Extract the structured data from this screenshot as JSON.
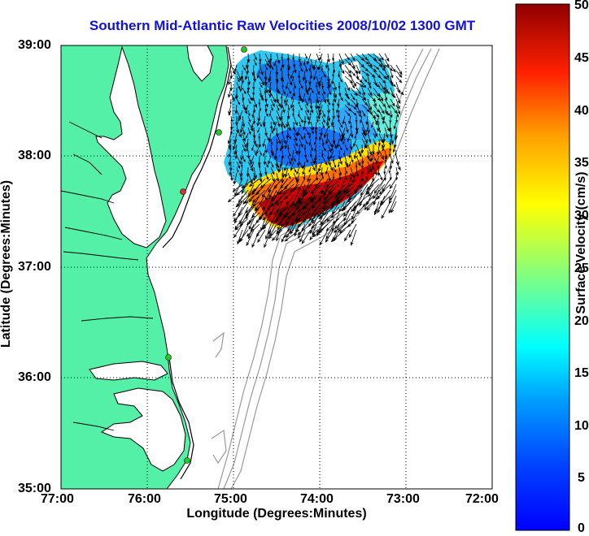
{
  "title": "Southern Mid-Atlantic Raw Velocities 2008/10/02 1300 GMT",
  "x_axis": {
    "label": "Longitude (Degrees:Minutes)",
    "ticks": [
      "77:00",
      "76:00",
      "75:00",
      "74:00",
      "73:00",
      "72:00"
    ]
  },
  "y_axis": {
    "label": "Latitude (Degrees:Minutes)",
    "ticks": [
      "39:00",
      "38:00",
      "37:00",
      "36:00",
      "35:00"
    ]
  },
  "colorbar": {
    "label": "Surface Velocity (cm/s)",
    "ticks": [
      "50",
      "45",
      "40",
      "35",
      "30",
      "25",
      "20",
      "15",
      "10",
      "5",
      "0"
    ],
    "min": 0,
    "max": 50
  },
  "colors": {
    "title": "#1010e0",
    "land": "#55f0a8",
    "coast": "#000000",
    "bathymetry": "#999999",
    "station_green": "#22cc22",
    "station_red": "#e03030",
    "grid": "#000000"
  },
  "chart_data": {
    "type": "heatmap",
    "title": "Southern Mid-Atlantic Raw Velocities 2008/10/02 1300 GMT",
    "xlabel": "Longitude (Degrees:Minutes)",
    "ylabel": "Latitude (Degrees:Minutes)",
    "xlim": [
      -77,
      -72
    ],
    "ylim": [
      35,
      39
    ],
    "color_scale": {
      "label": "Surface Velocity (cm/s)",
      "min": 0,
      "max": 50,
      "colormap": "jet"
    },
    "grid": true,
    "velocity_field_region": {
      "lon_range": [
        -75.1,
        -72.9
      ],
      "lat_range": [
        37.3,
        38.95
      ]
    }
  }
}
